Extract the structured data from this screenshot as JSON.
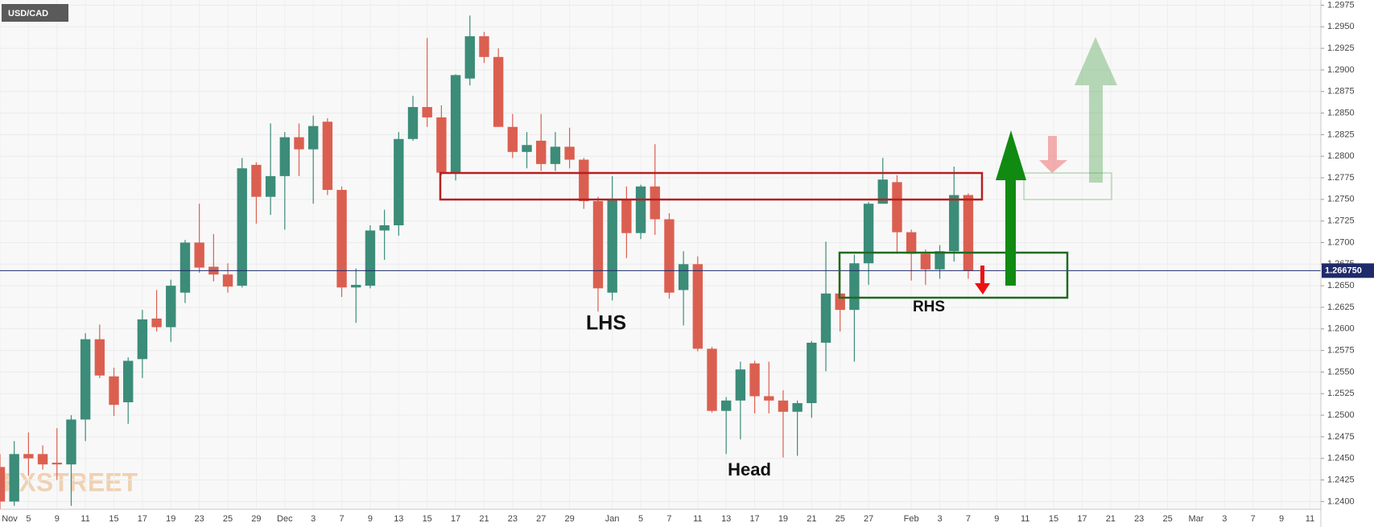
{
  "chart_data": {
    "type": "candlestick",
    "title": "USD/CAD",
    "watermark": "FXSTREET",
    "annotations": [
      "LHS",
      "Head",
      "RHS"
    ],
    "categories": [
      "Nov",
      null,
      "5",
      null,
      "9",
      null,
      "11",
      null,
      "15",
      null,
      "17",
      null,
      "19",
      null,
      "23",
      null,
      "25",
      null,
      "29",
      null,
      "Dec",
      null,
      "3",
      null,
      "7",
      null,
      "9",
      null,
      "13",
      null,
      "15",
      null,
      "17",
      null,
      "21",
      null,
      "23",
      null,
      "27",
      null,
      "29",
      null,
      null,
      "Jan",
      null,
      "5",
      null,
      "7",
      null,
      "11",
      null,
      "13",
      null,
      "17",
      null,
      "19",
      null,
      "21",
      null,
      "25",
      null,
      "27",
      null,
      null,
      "Feb",
      null,
      "3",
      null,
      "7",
      null,
      "9",
      null,
      "11",
      null,
      "15",
      null,
      "17",
      null,
      "21",
      null,
      "23",
      null,
      "25",
      null,
      "Mar",
      null,
      "3",
      null,
      "7",
      null,
      "9",
      null,
      "11"
    ],
    "open": [
      1.244,
      1.24,
      1.2455,
      1.2455,
      1.2445,
      1.2443,
      1.2495,
      1.2588,
      1.2545,
      1.2515,
      1.2565,
      1.2612,
      1.2602,
      1.2642,
      1.27,
      1.2672,
      1.2663,
      1.265,
      1.279,
      1.2753,
      1.2777,
      1.2822,
      1.2808,
      1.284,
      1.2761,
      1.2648,
      1.265,
      1.2714,
      1.272,
      1.282,
      1.2857,
      1.2845,
      1.2781,
      1.289,
      1.2939,
      1.2915,
      1.2834,
      1.2805,
      1.2818,
      1.2791,
      1.2811,
      1.2796,
      1.2748,
      1.2642,
      1.2749,
      1.2711,
      1.2765,
      1.2727,
      1.2645,
      1.2675,
      1.2577,
      1.2505,
      1.2517,
      1.256,
      1.2522,
      1.2517,
      1.2504,
      1.2514,
      1.2584,
      1.2641,
      1.2622,
      1.2676,
      1.2745,
      1.277,
      1.2712,
      1.2687,
      1.2669,
      1.269,
      1.2755,
      null,
      null,
      null,
      null,
      null,
      null,
      null,
      null,
      null,
      null,
      null,
      null,
      null,
      null,
      null,
      null,
      null,
      null,
      null,
      null,
      null,
      null,
      null,
      null
    ],
    "high": [
      1.2455,
      1.247,
      1.248,
      1.2465,
      1.2485,
      1.25,
      1.2595,
      1.2605,
      1.2555,
      1.2567,
      1.2622,
      1.2645,
      1.2657,
      1.2703,
      1.2745,
      1.271,
      1.2676,
      1.2798,
      1.2793,
      1.2838,
      1.2828,
      1.2838,
      1.2847,
      1.2844,
      1.2765,
      1.267,
      1.272,
      1.2738,
      1.2828,
      1.287,
      1.2937,
      1.2859,
      1.2895,
      1.2963,
      1.2944,
      1.2925,
      1.2849,
      1.2828,
      1.2849,
      1.2828,
      1.2833,
      1.2798,
      1.2753,
      1.2777,
      1.2765,
      1.2767,
      1.2814,
      1.2734,
      1.269,
      1.2684,
      1.2579,
      1.2521,
      1.2562,
      1.2563,
      1.2562,
      1.2529,
      1.2517,
      1.2586,
      1.2701,
      1.2671,
      1.2686,
      1.2747,
      1.2798,
      1.2778,
      1.2715,
      1.2692,
      1.2697,
      1.2788,
      1.2757,
      null,
      null,
      null,
      null,
      null,
      null,
      null,
      null,
      null,
      null,
      null,
      null,
      null,
      null,
      null,
      null,
      null,
      null,
      null,
      null,
      null,
      null,
      null,
      null
    ],
    "low": [
      1.239,
      1.2395,
      1.243,
      1.2437,
      1.2425,
      1.2395,
      1.247,
      1.2543,
      1.2499,
      1.249,
      1.2543,
      1.2597,
      1.2585,
      1.263,
      1.2665,
      1.2655,
      1.2642,
      1.2648,
      1.2722,
      1.2732,
      1.2715,
      1.2777,
      1.2745,
      1.2755,
      1.2637,
      1.2607,
      1.2647,
      1.268,
      1.2708,
      1.2818,
      1.2834,
      1.2778,
      1.2772,
      1.2882,
      1.2908,
      1.2834,
      1.2798,
      1.2786,
      1.2783,
      1.2783,
      1.2786,
      1.2739,
      1.262,
      1.2633,
      1.2682,
      1.2704,
      1.2709,
      1.2635,
      1.2604,
      1.2574,
      1.2503,
      1.2455,
      1.2472,
      1.2502,
      1.2502,
      1.2451,
      1.2453,
      1.2497,
      1.2551,
      1.2597,
      1.2562,
      1.2651,
      1.2745,
      1.2687,
      1.2656,
      1.2651,
      1.2658,
      1.2678,
      1.2658,
      null,
      null,
      null,
      null,
      null,
      null,
      null,
      null,
      null,
      null,
      null,
      null,
      null,
      null,
      null,
      null,
      null,
      null,
      null,
      null,
      null,
      null,
      null,
      null
    ],
    "close": [
      1.24,
      1.2455,
      1.245,
      1.2443,
      1.2443,
      1.2495,
      1.2588,
      1.2546,
      1.2512,
      1.2563,
      1.2611,
      1.2602,
      1.265,
      1.27,
      1.2671,
      1.2663,
      1.2649,
      1.2786,
      1.2753,
      1.2777,
      1.2822,
      1.2808,
      1.2835,
      1.2761,
      1.2648,
      1.2651,
      1.2714,
      1.272,
      1.282,
      1.2857,
      1.2845,
      1.2781,
      1.2894,
      1.2939,
      1.2915,
      1.2834,
      1.2805,
      1.2813,
      1.2791,
      1.2811,
      1.2796,
      1.2748,
      1.2647,
      1.2749,
      1.2711,
      1.2765,
      1.2727,
      1.2642,
      1.2675,
      1.2577,
      1.2505,
      1.2517,
      1.2553,
      1.2522,
      1.2517,
      1.2504,
      1.2514,
      1.2584,
      1.2641,
      1.2622,
      1.2676,
      1.2745,
      1.2773,
      1.2712,
      1.2687,
      1.2669,
      1.269,
      1.2755,
      1.2667,
      null,
      null,
      null,
      null,
      null,
      null,
      null,
      null,
      null,
      null,
      null,
      null,
      null,
      null,
      null,
      null,
      null,
      null,
      null,
      null,
      null,
      null,
      null,
      null
    ],
    "up_color": "#3b8c79",
    "down_color": "#db5f50",
    "grid": true,
    "ylim": [
      1.2391,
      1.2981
    ],
    "yticks": [
      {
        "value": 1.24,
        "label": "1.2400"
      },
      {
        "value": 1.2425,
        "label": "1.2425"
      },
      {
        "value": 1.245,
        "label": "1.2450"
      },
      {
        "value": 1.2475,
        "label": "1.2475"
      },
      {
        "value": 1.25,
        "label": "1.2500"
      },
      {
        "value": 1.2525,
        "label": "1.2525"
      },
      {
        "value": 1.255,
        "label": "1.2550"
      },
      {
        "value": 1.2575,
        "label": "1.2575"
      },
      {
        "value": 1.26,
        "label": "1.2600"
      },
      {
        "value": 1.2625,
        "label": "1.2625"
      },
      {
        "value": 1.265,
        "label": "1.2650"
      },
      {
        "value": 1.2675,
        "label": "1.2675"
      },
      {
        "value": 1.27,
        "label": "1.2700"
      },
      {
        "value": 1.2725,
        "label": "1.2725"
      },
      {
        "value": 1.275,
        "label": "1.2750"
      },
      {
        "value": 1.2775,
        "label": "1.2775"
      },
      {
        "value": 1.28,
        "label": "1.2800"
      },
      {
        "value": 1.2825,
        "label": "1.2825"
      },
      {
        "value": 1.285,
        "label": "1.2850"
      },
      {
        "value": 1.2875,
        "label": "1.2875"
      },
      {
        "value": 1.29,
        "label": "1.2900"
      },
      {
        "value": 1.2925,
        "label": "1.2925"
      },
      {
        "value": 1.295,
        "label": "1.2950"
      },
      {
        "value": 1.2975,
        "label": "1.2975"
      }
    ],
    "last_price": {
      "value": 1.26675,
      "label": "1.266750"
    }
  }
}
